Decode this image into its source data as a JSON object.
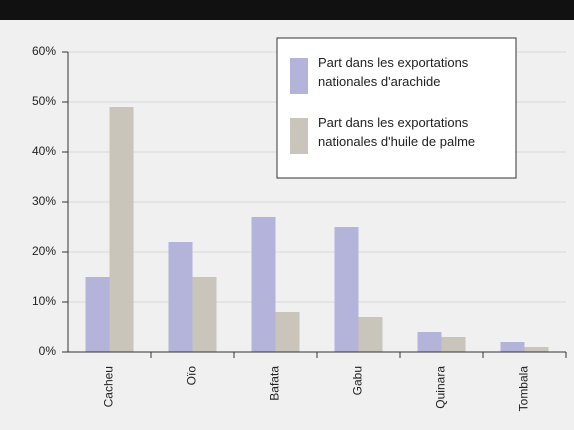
{
  "chart_data": {
    "type": "bar",
    "categories": [
      "Cacheu",
      "Oïo",
      "Bafata",
      "Gabu",
      "Quinara",
      "Tombala"
    ],
    "series": [
      {
        "name": "Part dans les exportations nationales d'arachide",
        "color": "#b4b3d9",
        "values": [
          15,
          22,
          27,
          25,
          4,
          2
        ]
      },
      {
        "name": "Part dans les exportations nationales d'huile de palme",
        "color": "#c9c5bb",
        "values": [
          49,
          15,
          8,
          7,
          3,
          1
        ]
      }
    ],
    "ylim": [
      0,
      60
    ],
    "yticks": [
      {
        "value": 0,
        "label": "0%"
      },
      {
        "value": 10,
        "label": "10%"
      },
      {
        "value": 20,
        "label": "20%"
      },
      {
        "value": 30,
        "label": "30%"
      },
      {
        "value": 40,
        "label": "40%"
      },
      {
        "value": 50,
        "label": "50%"
      },
      {
        "value": 60,
        "label": "60%"
      }
    ],
    "grid": true
  }
}
